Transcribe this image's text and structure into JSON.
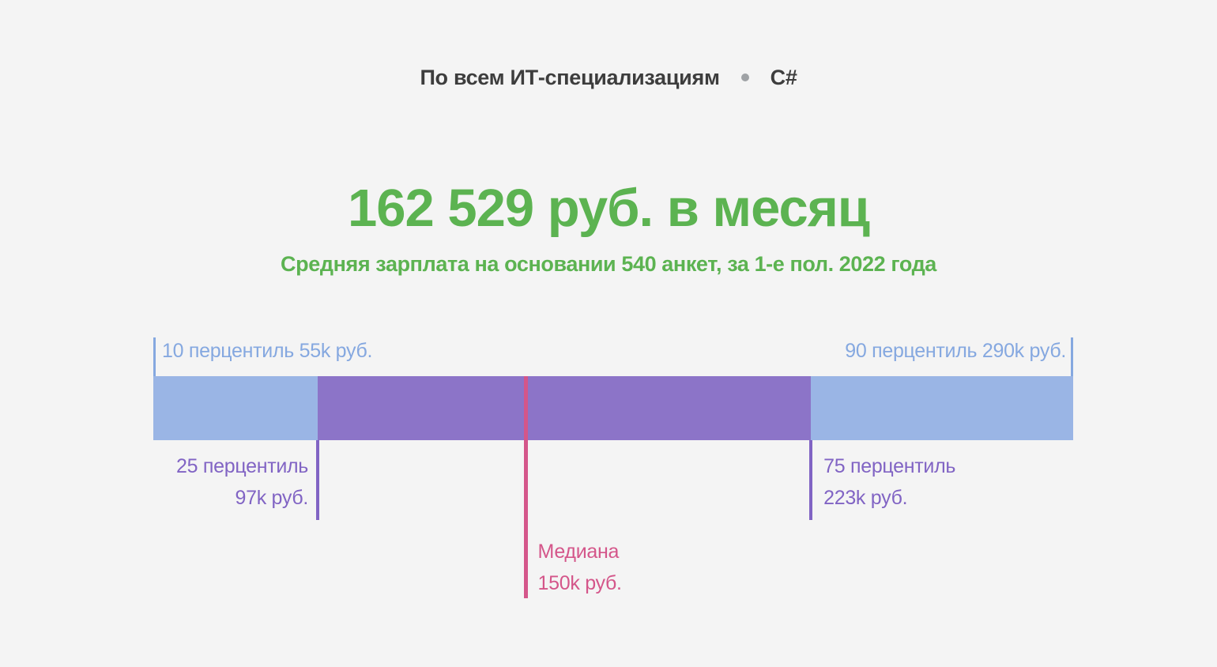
{
  "tabs": {
    "all_it": "По всем ИТ-специализациям",
    "separator": "•",
    "csharp": "C#"
  },
  "colors": {
    "background": "#f4f4f4",
    "tab-text": "#3d3d3d",
    "separator-dot": "#9fa2a5",
    "accent-green": "#5cb351"
  },
  "chart_data": {
    "type": "percentile-range-bar",
    "title": "162 529 руб. в месяц",
    "subtitle": "Средняя зарплата на основании 540 анкет, за 1-е пол. 2022 года",
    "average_salary_rub": 162529,
    "sample_size": 540,
    "period": "1-е пол. 2022 года",
    "unit": "k руб. в месяц",
    "axis": {
      "min": 55,
      "max": 290
    },
    "points": {
      "p10": 55,
      "p25": 97,
      "median": 150,
      "p75": 223,
      "p90": 290
    },
    "labels": {
      "p10": "10 перцентиль 55k руб.",
      "p25": [
        "25 перцентиль",
        "97k руб."
      ],
      "median": [
        "Медиана",
        "150k руб."
      ],
      "p75": [
        "75 перцентиль",
        "223k руб."
      ],
      "p90": "90 перцентиль 290k руб."
    },
    "legend_position": "none",
    "grid": false,
    "colors": {
      "range-blue": "#9ab5e5",
      "blue-label": "#85a8e0",
      "iqr-purple": "#8c74c8",
      "purple-label": "#8164c4",
      "median-pink": "#d4568a"
    }
  }
}
